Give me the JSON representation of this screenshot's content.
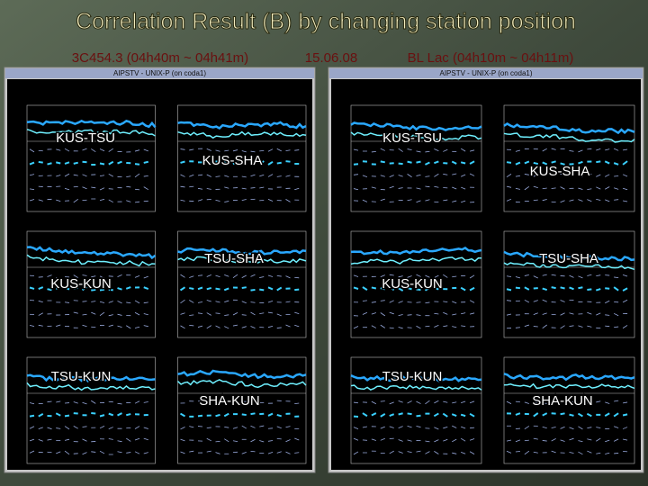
{
  "header": {
    "title": "Correlation Result (B) by changing station position",
    "left_source": "3C454.3 (04h40m ~ 04h41m)",
    "date": "15.06.08",
    "right_source": "BL Lac (04h10m ~ 04h11m)"
  },
  "windows": [
    {
      "title": "AIPSTV - UNIX-P (on coda1)",
      "baselines": [
        "KUS-TSU",
        "KUS-SHA",
        "TSU-SHA",
        "KUS-KUN",
        "TSU-KUN",
        "SHA-KUN"
      ]
    },
    {
      "title": "AIPSTV - UNIX-P (on coda1)",
      "baselines": [
        "KUS-TSU",
        "KUS-SHA",
        "TSU-SHA",
        "KUS-KUN",
        "TSU-KUN",
        "SHA-KUN"
      ]
    }
  ]
}
